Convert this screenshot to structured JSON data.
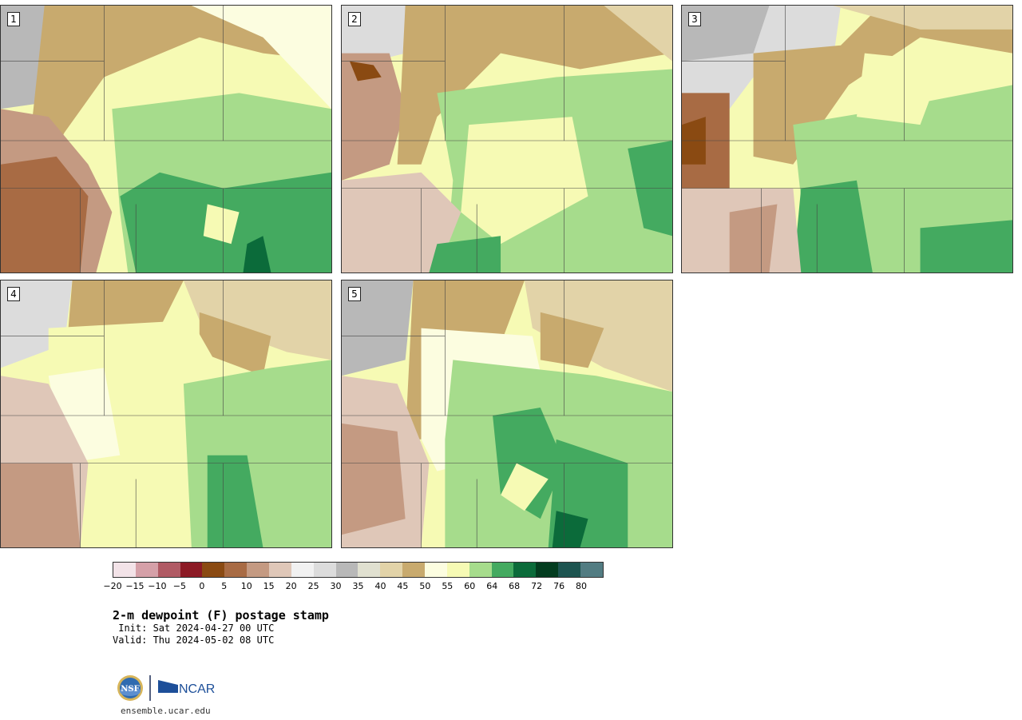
{
  "panels": [
    {
      "label": "1"
    },
    {
      "label": "2"
    },
    {
      "label": "3"
    },
    {
      "label": "4"
    },
    {
      "label": "5"
    }
  ],
  "colorbar": {
    "colors": [
      "#f3e3e8",
      "#d5a0a8",
      "#b05a64",
      "#8c1a25",
      "#8a4a12",
      "#a86b44",
      "#c49a82",
      "#dfc7b8",
      "#f1f1f1",
      "#dcdcdc",
      "#b8b8b8",
      "#e0e0d0",
      "#e2d3a8",
      "#c8aa6e",
      "#fcfde0",
      "#f6fab4",
      "#a6dc8c",
      "#44aa60",
      "#0b6b3a",
      "#033c1f",
      "#1d5450",
      "#527c82"
    ],
    "ticks": [
      "−20",
      "−15",
      "−10",
      "−5",
      "0",
      "5",
      "10",
      "15",
      "20",
      "25",
      "30",
      "35",
      "40",
      "45",
      "50",
      "55",
      "60",
      "64",
      "68",
      "72",
      "76",
      "80"
    ]
  },
  "title": "2-m dewpoint (F) postage stamp",
  "init": " Init: Sat 2024-04-27 00 UTC",
  "valid": "Valid: Thu 2024-05-02 08 UTC",
  "logos": {
    "nsf": "NSF",
    "ncar": "NCAR"
  },
  "footer": "ensemble.ucar.edu"
}
